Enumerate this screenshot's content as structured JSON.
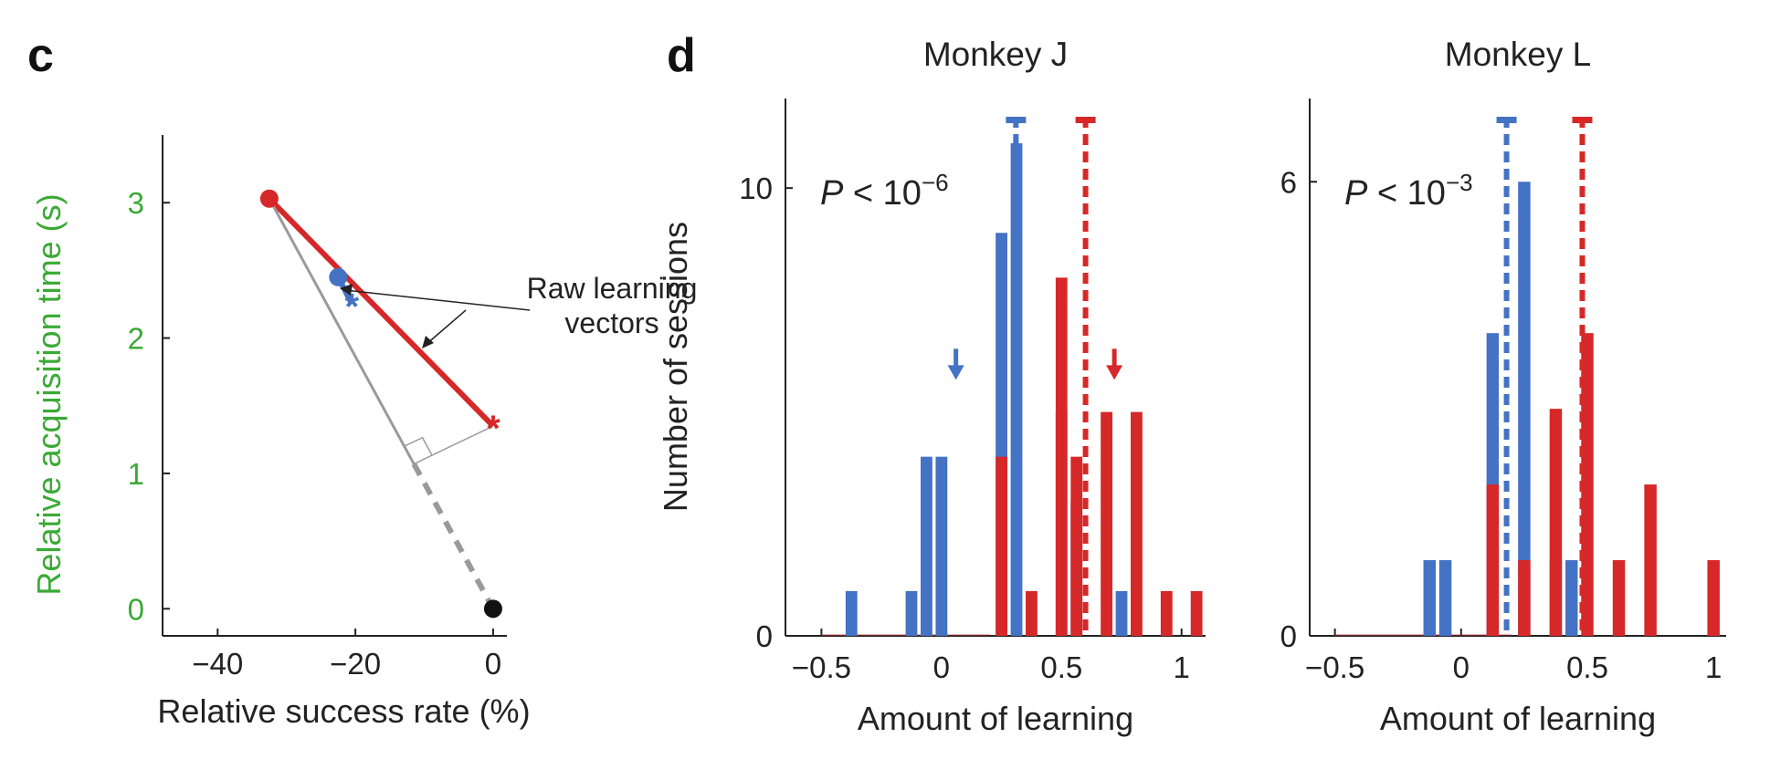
{
  "colors": {
    "blue": "#4472c4",
    "red": "#d62828",
    "green": "#3aaa35",
    "gray": "#9a9a9a",
    "black": "#111111"
  },
  "panel_c": {
    "letter": "c",
    "annotation_line1": "Raw learning",
    "annotation_line2": "vectors"
  },
  "panel_d": {
    "letter": "d"
  },
  "chart_data": [
    {
      "type": "scatter",
      "xlabel": "Relative success rate (%)",
      "ylabel": "Relative acquisition time (s)",
      "x_ticks": [
        "−40",
        "−20",
        "0"
      ],
      "y_ticks": [
        "0",
        "1",
        "2",
        "3"
      ],
      "xlim": [
        -48,
        2
      ],
      "ylim": [
        -0.2,
        3.5
      ],
      "points": [
        {
          "name": "red-start",
          "x": -32.5,
          "y": 3.03,
          "marker": "dot",
          "color": "red"
        },
        {
          "name": "red-end",
          "x": 0,
          "y": 1.35,
          "marker": "star",
          "color": "red"
        },
        {
          "name": "blue-start",
          "x": -22.5,
          "y": 2.45,
          "marker": "dot",
          "color": "blue"
        },
        {
          "name": "blue-end",
          "x": -20.5,
          "y": 2.25,
          "marker": "star",
          "color": "blue"
        },
        {
          "name": "origin",
          "x": 0,
          "y": 0,
          "marker": "dot",
          "color": "black"
        }
      ],
      "lines": [
        {
          "name": "red-vector",
          "from": [
            -32.5,
            3.03
          ],
          "to": [
            0,
            1.35
          ],
          "color": "red",
          "style": "solid"
        },
        {
          "name": "blue-vector",
          "from": [
            -22.5,
            2.45
          ],
          "to": [
            -20.5,
            2.25
          ],
          "color": "blue",
          "style": "solid"
        },
        {
          "name": "projection-line",
          "from": [
            -32.5,
            3.03
          ],
          "to": [
            -11.5,
            1.07
          ],
          "color": "gray",
          "style": "solid"
        },
        {
          "name": "perpendicular",
          "from": [
            -11.5,
            1.07
          ],
          "to": [
            0,
            1.35
          ],
          "color": "gray",
          "style": "thin"
        },
        {
          "name": "dashed-extension",
          "from": [
            -11.5,
            1.07
          ],
          "to": [
            0,
            0
          ],
          "color": "gray",
          "style": "dashed"
        }
      ]
    },
    {
      "type": "bar",
      "title": "Monkey J",
      "xlabel": "Amount of learning",
      "ylabel": "Number of sessions",
      "p_value": {
        "prefix": "P",
        "text": " < 10",
        "exp": "−6"
      },
      "x_ticks": [
        "−0.5",
        "0",
        "0.5",
        "1"
      ],
      "y_ticks": [
        "0",
        "10"
      ],
      "xlim": [
        -0.65,
        1.1
      ],
      "ylim": [
        0,
        12
      ],
      "bin_width": 0.0625,
      "series": [
        {
          "color": "blue",
          "centers": [
            -0.375,
            -0.125,
            -0.0625,
            0.0,
            0.25,
            0.3125,
            0.5,
            0.5625,
            0.75
          ],
          "values": [
            1,
            1,
            4,
            4,
            9,
            11,
            5,
            3,
            1
          ]
        },
        {
          "color": "red",
          "centers": [
            0.25,
            0.375,
            0.5,
            0.5625,
            0.6875,
            0.8125,
            0.9375,
            1.0625
          ],
          "values": [
            4,
            1,
            8,
            4,
            5,
            5,
            1,
            1
          ]
        }
      ],
      "means": [
        {
          "color": "blue",
          "x": 0.31
        },
        {
          "color": "red",
          "x": 0.6
        }
      ],
      "arrows": [
        {
          "color": "blue",
          "x": 0.06,
          "y": 5.8
        },
        {
          "color": "red",
          "x": 0.72,
          "y": 5.8
        }
      ]
    },
    {
      "type": "bar",
      "title": "Monkey L",
      "xlabel": "Amount of learning",
      "ylabel": "",
      "p_value": {
        "prefix": "P",
        "text": " < 10",
        "exp": "−3"
      },
      "x_ticks": [
        "−0.5",
        "0",
        "0.5",
        "1"
      ],
      "y_ticks": [
        "0",
        "6"
      ],
      "xlim": [
        -0.6,
        1.05
      ],
      "ylim": [
        0,
        7.1
      ],
      "bin_width": 0.0625,
      "series": [
        {
          "color": "blue",
          "centers": [
            -0.125,
            -0.0625,
            0.125,
            0.25,
            0.375,
            0.4375
          ],
          "values": [
            1,
            1,
            4,
            6,
            1,
            1
          ]
        },
        {
          "color": "red",
          "centers": [
            0.125,
            0.25,
            0.375,
            0.5,
            0.625,
            0.75,
            1.0
          ],
          "values": [
            2,
            1,
            3,
            4,
            1,
            2,
            1
          ]
        }
      ],
      "means": [
        {
          "color": "blue",
          "x": 0.18
        },
        {
          "color": "red",
          "x": 0.48
        }
      ]
    }
  ]
}
